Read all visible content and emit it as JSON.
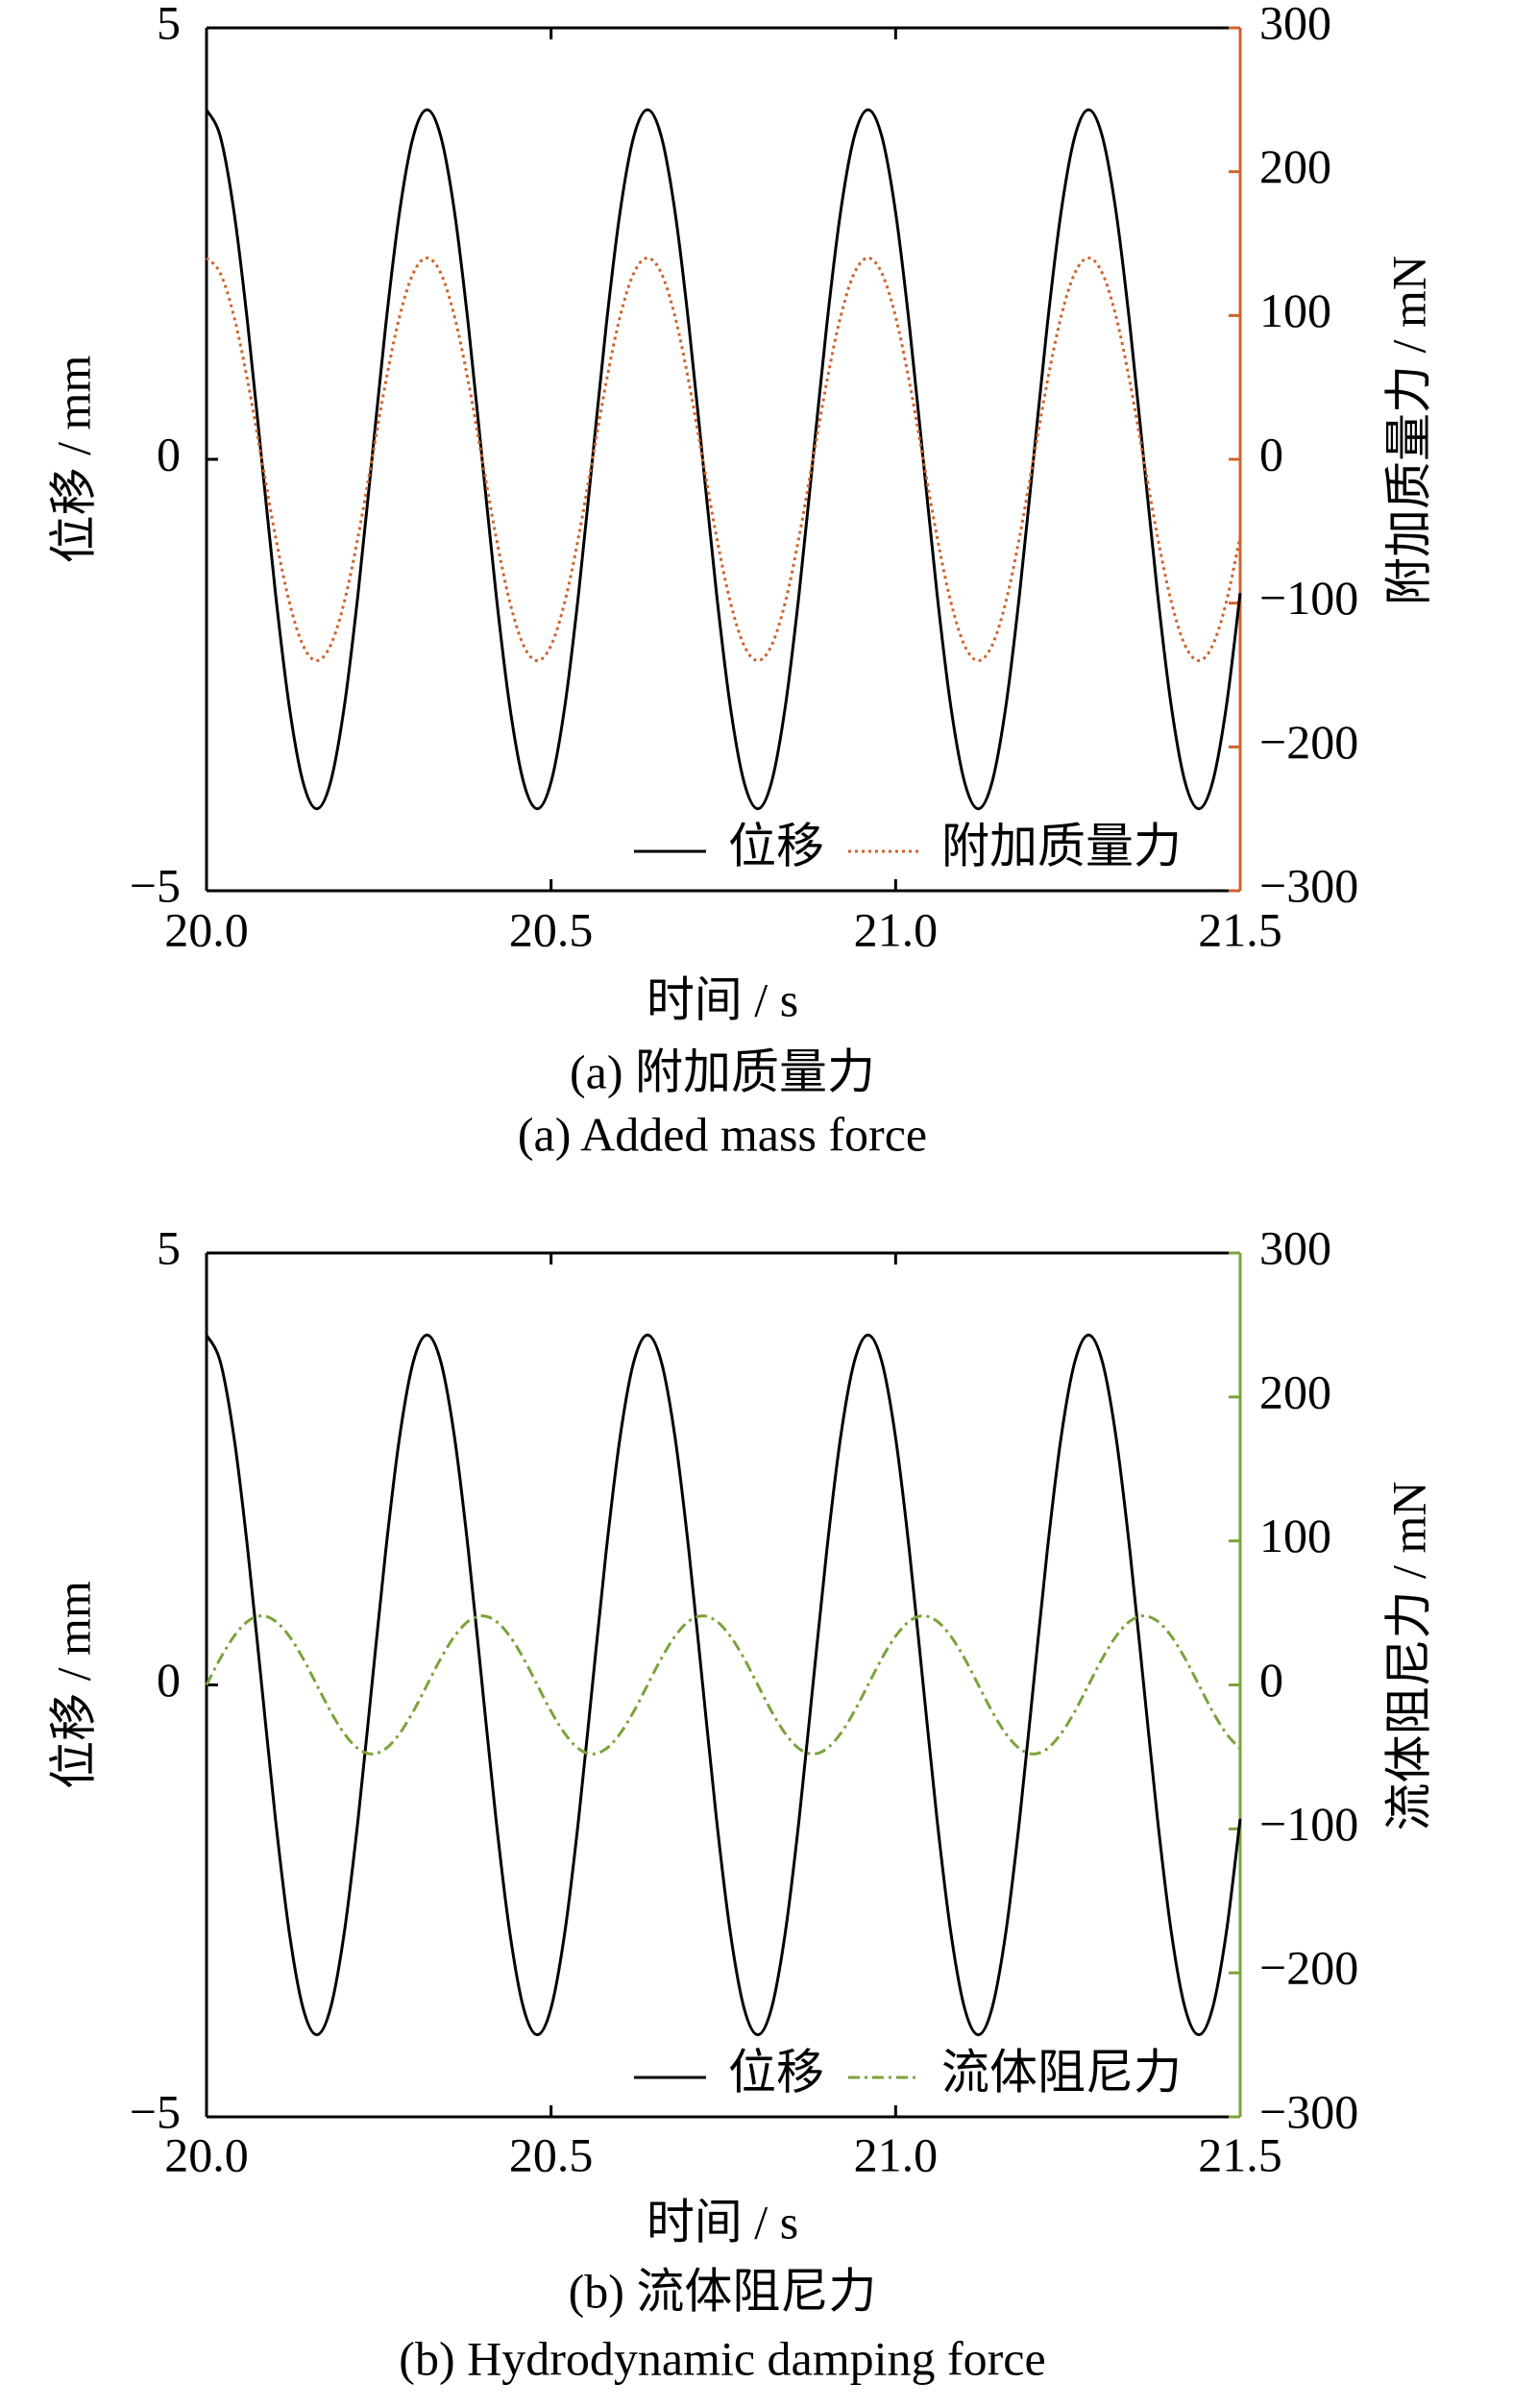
{
  "chart_data": [
    {
      "type": "line",
      "panel": "a",
      "caption_cn": "(a) 附加质量力",
      "caption_en": "(a) Added mass force",
      "xlabel": "时间 / s",
      "ylabel_left": "位移 / mm",
      "ylabel_right": "附加质量力 / mN",
      "xlim": [
        20.0,
        21.5
      ],
      "ylim_left": [
        -5,
        5
      ],
      "ylim_right": [
        -300,
        300
      ],
      "xticks": [
        "20.0",
        "20.5",
        "21.0",
        "21.5"
      ],
      "yticks_left": [
        "5",
        "0",
        "−5"
      ],
      "yticks_right": [
        "300",
        "200",
        "100",
        "0",
        "−100",
        "−200",
        "−300"
      ],
      "right_axis_color": "#d0622c",
      "legend_position": "bottom-right",
      "x_start": 20.0,
      "x_step": 0.02,
      "series": [
        {
          "name": "位移",
          "axis": "left",
          "color": "#000000",
          "style": "solid",
          "values": [
            4.05,
            3.74,
            2.86,
            1.55,
            0,
            -1.55,
            -2.86,
            -3.74,
            -4.05,
            -3.74,
            -2.86,
            -1.55,
            0,
            1.55,
            2.86,
            3.74,
            4.05,
            3.74,
            2.86,
            1.55,
            0,
            -1.55,
            -2.86,
            -3.74,
            -4.05,
            -3.74,
            -2.86,
            -1.55,
            0,
            1.55,
            2.86,
            3.74,
            4.05,
            3.74,
            2.86,
            1.55,
            0,
            -1.55,
            -2.86,
            -3.74,
            -4.05,
            -3.74,
            -2.86,
            -1.55,
            0,
            1.55,
            2.86,
            3.74,
            4.05,
            3.74,
            2.86,
            1.55,
            0,
            -1.55,
            -2.86,
            -3.74,
            -4.05,
            -3.74,
            -2.86,
            -1.55,
            0,
            1.55,
            2.86,
            3.74,
            4.05,
            3.74,
            2.86,
            1.55,
            0,
            -1.55,
            -2.86,
            -3.74,
            -4.05,
            -3.74,
            -2.86,
            -1.55
          ]
        },
        {
          "name": "附加质量力",
          "axis": "right",
          "color": "#d0622c",
          "style": "dotted",
          "values": [
            140,
            129.4,
            99,
            53.6,
            0,
            -53.6,
            -99,
            -129.4,
            -140,
            -129.4,
            -99,
            -53.6,
            0,
            53.6,
            99,
            129.4,
            140,
            129.4,
            99,
            53.6,
            0,
            -53.6,
            -99,
            -129.4,
            -140,
            -129.4,
            -99,
            -53.6,
            0,
            53.6,
            99,
            129.4,
            140,
            129.4,
            99,
            53.6,
            0,
            -53.6,
            -99,
            -129.4,
            -140,
            -129.4,
            -99,
            -53.6,
            0,
            53.6,
            99,
            129.4,
            140,
            129.4,
            99,
            53.6,
            0,
            -53.6,
            -99,
            -129.4,
            -140,
            -129.4,
            -99,
            -53.6,
            0,
            53.6,
            99,
            129.4,
            140,
            129.4,
            99,
            53.6,
            0,
            -53.6,
            -99,
            -129.4,
            -140,
            -129.4,
            -99,
            -53.6
          ]
        }
      ]
    },
    {
      "type": "line",
      "panel": "b",
      "caption_cn": "(b) 流体阻尼力",
      "caption_en": "(b) Hydrodynamic damping force",
      "xlabel": "时间 / s",
      "ylabel_left": "位移 / mm",
      "ylabel_right": "流体阻尼力 / mN",
      "xlim": [
        20.0,
        21.5
      ],
      "ylim_left": [
        -5,
        5
      ],
      "ylim_right": [
        -300,
        300
      ],
      "xticks": [
        "20.0",
        "20.5",
        "21.0",
        "21.5"
      ],
      "yticks_left": [
        "5",
        "0",
        "−5"
      ],
      "yticks_right": [
        "300",
        "200",
        "100",
        "0",
        "−100",
        "−200",
        "−300"
      ],
      "right_axis_color": "#7aa33a",
      "legend_position": "bottom-right",
      "x_start": 20.0,
      "x_step": 0.02,
      "series": [
        {
          "name": "位移",
          "axis": "left",
          "color": "#000000",
          "style": "solid",
          "values": [
            4.05,
            3.74,
            2.86,
            1.55,
            0,
            -1.55,
            -2.86,
            -3.74,
            -4.05,
            -3.74,
            -2.86,
            -1.55,
            0,
            1.55,
            2.86,
            3.74,
            4.05,
            3.74,
            2.86,
            1.55,
            0,
            -1.55,
            -2.86,
            -3.74,
            -4.05,
            -3.74,
            -2.86,
            -1.55,
            0,
            1.55,
            2.86,
            3.74,
            4.05,
            3.74,
            2.86,
            1.55,
            0,
            -1.55,
            -2.86,
            -3.74,
            -4.05,
            -3.74,
            -2.86,
            -1.55,
            0,
            1.55,
            2.86,
            3.74,
            4.05,
            3.74,
            2.86,
            1.55,
            0,
            -1.55,
            -2.86,
            -3.74,
            -4.05,
            -3.74,
            -2.86,
            -1.55,
            0,
            1.55,
            2.86,
            3.74,
            4.05,
            3.74,
            2.86,
            1.55,
            0,
            -1.55,
            -2.86,
            -3.74,
            -4.05,
            -3.74,
            -2.86,
            -1.55
          ]
        },
        {
          "name": "流体阻尼力",
          "axis": "right",
          "color": "#7aa33a",
          "style": "dashdot",
          "values": [
            0,
            18.4,
            33.9,
            44.3,
            48,
            44.3,
            33.9,
            18.4,
            0,
            -18.4,
            -33.9,
            -44.3,
            -48,
            -44.3,
            -33.9,
            -18.4,
            0,
            18.4,
            33.9,
            44.3,
            48,
            44.3,
            33.9,
            18.4,
            0,
            -18.4,
            -33.9,
            -44.3,
            -48,
            -44.3,
            -33.9,
            -18.4,
            0,
            18.4,
            33.9,
            44.3,
            48,
            44.3,
            33.9,
            18.4,
            0,
            -18.4,
            -33.9,
            -44.3,
            -48,
            -44.3,
            -33.9,
            -18.4,
            0,
            18.4,
            33.9,
            44.3,
            48,
            44.3,
            33.9,
            18.4,
            0,
            -18.4,
            -33.9,
            -44.3,
            -48,
            -44.3,
            -33.9,
            -18.4,
            0,
            18.4,
            33.9,
            44.3,
            48,
            44.3,
            33.9,
            18.4,
            0,
            -18.4,
            -33.9,
            -44.3
          ]
        }
      ]
    }
  ]
}
